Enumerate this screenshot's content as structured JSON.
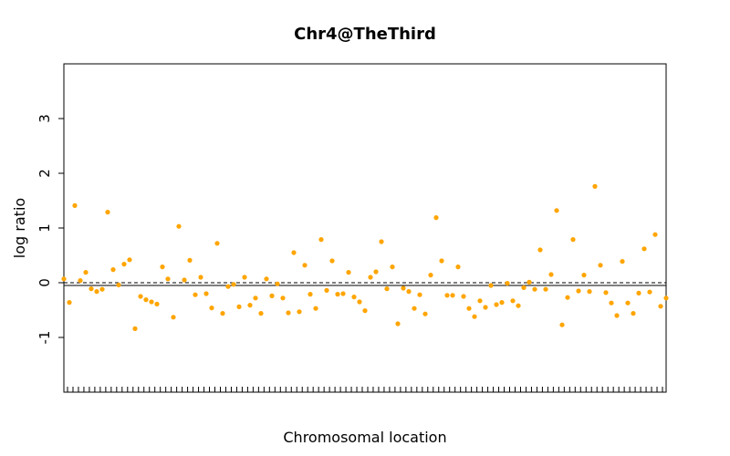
{
  "chart_data": {
    "type": "scatter",
    "title": "Chr4@TheThird",
    "xlabel": "Chromosomal location",
    "ylabel": "log ratio",
    "ylim": [
      -2,
      4
    ],
    "yticks": [
      3,
      2,
      1,
      0,
      -1
    ],
    "grid": false,
    "point_color": "#ffa500",
    "reference_lines": [
      {
        "y": -0.05,
        "style": "solid"
      },
      {
        "y": 0.0,
        "style": "dashed"
      }
    ],
    "x_tick_count": 110,
    "series": [
      {
        "values": [
          0.07,
          -0.36,
          1.41,
          0.04,
          0.19,
          -0.11,
          -0.16,
          -0.12,
          1.29,
          0.24,
          -0.04,
          0.34,
          0.42,
          -0.84,
          -0.25,
          -0.31,
          -0.35,
          -0.39,
          0.29,
          0.07,
          -0.63,
          1.03,
          0.05,
          0.41,
          -0.22,
          0.1,
          -0.2,
          -0.46,
          0.72,
          -0.56,
          -0.07,
          -0.03,
          -0.44,
          0.1,
          -0.41,
          -0.28,
          -0.56,
          0.07,
          -0.24,
          -0.02,
          -0.28,
          -0.55,
          0.55,
          -0.53,
          0.32,
          -0.21,
          -0.47,
          0.79,
          -0.14,
          0.4,
          -0.21,
          -0.2,
          0.19,
          -0.26,
          -0.35,
          -0.51,
          0.1,
          0.2,
          0.75,
          -0.11,
          0.29,
          -0.75,
          -0.1,
          -0.16,
          -0.47,
          -0.22,
          -0.57,
          0.14,
          1.19,
          0.4,
          -0.23,
          -0.23,
          0.29,
          -0.25,
          -0.47,
          -0.62,
          -0.33,
          -0.45,
          -0.05,
          -0.4,
          -0.36,
          -0.01,
          -0.33,
          -0.42,
          -0.09,
          0.01,
          -0.12,
          0.6,
          -0.12,
          0.15,
          1.32,
          -0.77,
          -0.27,
          0.79,
          -0.15,
          0.14,
          -0.16,
          1.76,
          0.32,
          -0.18,
          -0.37,
          -0.6,
          0.39,
          -0.37,
          -0.56,
          -0.19,
          0.62,
          -0.17,
          0.88,
          -0.43,
          -0.28
        ]
      }
    ]
  }
}
